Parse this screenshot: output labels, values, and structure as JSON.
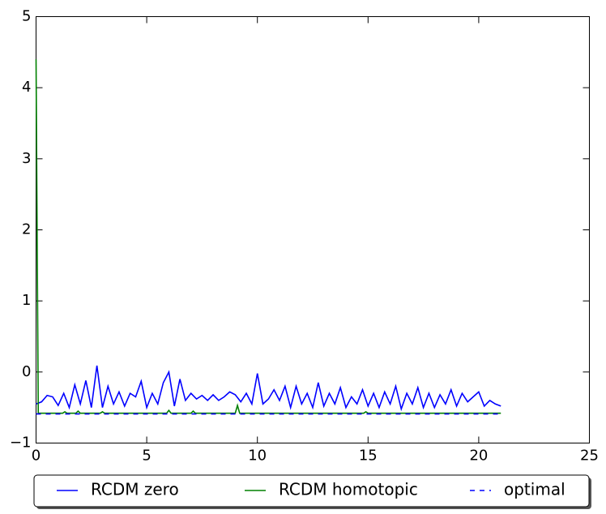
{
  "chart_data": {
    "type": "line",
    "xlim": [
      0,
      25
    ],
    "ylim": [
      -1,
      5
    ],
    "xticks": [
      0,
      5,
      10,
      15,
      20,
      25
    ],
    "yticks": [
      {
        "value": -1,
        "label": "−1"
      },
      0,
      1,
      2,
      3,
      4,
      5
    ],
    "legend": "below",
    "series": [
      {
        "name": "RCDM zero",
        "color": "#0000ff",
        "linestyle": "solid",
        "x": [
          0,
          0.25,
          0.5,
          0.75,
          1,
          1.25,
          1.5,
          1.75,
          2,
          2.25,
          2.5,
          2.75,
          3,
          3.25,
          3.5,
          3.75,
          4,
          4.25,
          4.5,
          4.75,
          5,
          5.25,
          5.5,
          5.75,
          6,
          6.25,
          6.5,
          6.75,
          7,
          7.25,
          7.5,
          7.75,
          8,
          8.25,
          8.5,
          8.75,
          9,
          9.25,
          9.5,
          9.75,
          10,
          10.25,
          10.5,
          10.75,
          11,
          11.25,
          11.5,
          11.75,
          12,
          12.25,
          12.5,
          12.75,
          13,
          13.25,
          13.5,
          13.75,
          14,
          14.25,
          14.5,
          14.75,
          15,
          15.25,
          15.5,
          15.75,
          16,
          16.25,
          16.5,
          16.75,
          17,
          17.25,
          17.5,
          17.75,
          18,
          18.25,
          18.5,
          18.75,
          19,
          19.25,
          19.5,
          19.75,
          20,
          20.25,
          20.5,
          20.75,
          21
        ],
        "values": [
          -0.45,
          -0.42,
          -0.33,
          -0.35,
          -0.47,
          -0.3,
          -0.5,
          -0.18,
          -0.45,
          -0.12,
          -0.5,
          0.09,
          -0.5,
          -0.2,
          -0.45,
          -0.28,
          -0.48,
          -0.3,
          -0.35,
          -0.13,
          -0.5,
          -0.3,
          -0.45,
          -0.15,
          0.0,
          -0.48,
          -0.1,
          -0.4,
          -0.3,
          -0.38,
          -0.33,
          -0.4,
          -0.32,
          -0.4,
          -0.35,
          -0.28,
          -0.32,
          -0.42,
          -0.3,
          -0.45,
          -0.02,
          -0.45,
          -0.38,
          -0.25,
          -0.4,
          -0.2,
          -0.5,
          -0.2,
          -0.45,
          -0.3,
          -0.5,
          -0.15,
          -0.48,
          -0.3,
          -0.45,
          -0.22,
          -0.5,
          -0.35,
          -0.45,
          -0.25,
          -0.48,
          -0.3,
          -0.5,
          -0.28,
          -0.45,
          -0.2,
          -0.52,
          -0.3,
          -0.45,
          -0.22,
          -0.5,
          -0.3,
          -0.5,
          -0.32,
          -0.45,
          -0.25,
          -0.48,
          -0.3,
          -0.42,
          -0.35,
          -0.28,
          -0.48,
          -0.4,
          -0.45,
          -0.48
        ]
      },
      {
        "name": "RCDM homotopic",
        "color": "#008000",
        "linestyle": "solid",
        "x": [
          0,
          0.1,
          1.2,
          1.3,
          1.4,
          1.8,
          1.9,
          2.0,
          2.9,
          3.0,
          3.1,
          5.9,
          6.0,
          6.1,
          7.0,
          7.1,
          7.2,
          9.0,
          9.1,
          9.2,
          14.8,
          14.9,
          15.0,
          21.0
        ],
        "values": [
          4.4,
          -0.58,
          -0.58,
          -0.56,
          -0.58,
          -0.58,
          -0.55,
          -0.58,
          -0.58,
          -0.56,
          -0.58,
          -0.58,
          -0.54,
          -0.58,
          -0.58,
          -0.55,
          -0.58,
          -0.58,
          -0.47,
          -0.58,
          -0.58,
          -0.56,
          -0.58,
          -0.58
        ]
      },
      {
        "name": "optimal",
        "color": "#0000ff",
        "linestyle": "dashed",
        "x": [
          0,
          21
        ],
        "values": [
          -0.59,
          -0.59
        ]
      }
    ]
  }
}
